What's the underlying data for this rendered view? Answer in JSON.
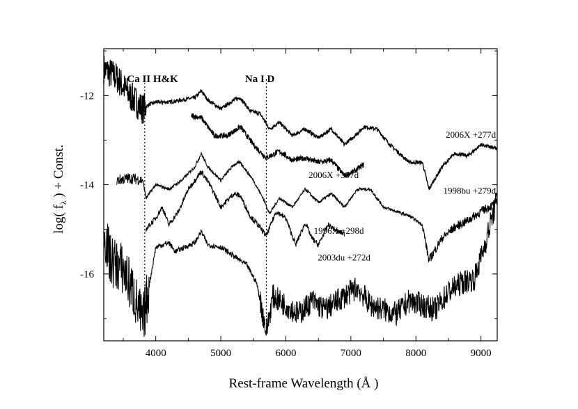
{
  "chart_data": {
    "type": "line",
    "xlabel": "Rest-frame Wavelength (Å )",
    "ylabel": "log( f_λ ) + Const.",
    "xlim": [
      3200,
      9250
    ],
    "ylim": [
      -17.5,
      -10.95
    ],
    "xticks": [
      4000,
      5000,
      6000,
      7000,
      8000,
      9000
    ],
    "yticks": [
      -12,
      -14,
      -16
    ],
    "grid": false,
    "legend": "none",
    "line_markers": [
      {
        "label": "Ca II H&K",
        "x": 3830,
        "label_x": 3950
      },
      {
        "label": "Na I D",
        "x": 5700,
        "label_x": 5600
      }
    ],
    "series": [
      {
        "name": "2006X +277d",
        "x": [
          3200,
          3400,
          3600,
          3800,
          3900,
          4000,
          4200,
          4400,
          4600,
          4700,
          4800,
          5000,
          5200,
          5300,
          5450,
          5600,
          5750,
          5900,
          6100,
          6300,
          6500,
          6700,
          6900,
          7100,
          7200,
          7400,
          7600,
          7900,
          8100,
          8200,
          8400,
          8600,
          8800,
          9000,
          9250
        ],
        "y": [
          -11.4,
          -11.6,
          -12.0,
          -12.3,
          -12.2,
          -12.15,
          -12.15,
          -12.1,
          -12.05,
          -11.9,
          -12.1,
          -12.3,
          -12.1,
          -12.05,
          -12.35,
          -12.4,
          -12.75,
          -12.6,
          -12.9,
          -12.75,
          -12.95,
          -12.75,
          -13.1,
          -12.85,
          -12.7,
          -12.75,
          -13.1,
          -13.5,
          -13.5,
          -14.1,
          -13.6,
          -13.3,
          -13.35,
          -13.1,
          -13.2
        ]
      },
      {
        "name": "2006X +307d",
        "x": [
          4550,
          4700,
          4900,
          5100,
          5300,
          5500,
          5700,
          5900,
          6100,
          6300,
          6500,
          6700,
          6900,
          7050,
          7200
        ],
        "y": [
          -12.45,
          -12.5,
          -12.9,
          -12.9,
          -12.7,
          -13.1,
          -13.4,
          -13.25,
          -13.45,
          -13.4,
          -13.5,
          -13.45,
          -13.8,
          -13.7,
          -13.55
        ]
      },
      {
        "name": "1998bu +279d",
        "x": [
          3400,
          3600,
          3800,
          3850,
          4000,
          4200,
          4400,
          4600,
          4700,
          4800,
          5000,
          5200,
          5300,
          5500,
          5650,
          5750,
          5900,
          6100,
          6300,
          6500,
          6700,
          6900,
          7100,
          7300,
          7500,
          7700,
          7900,
          8100,
          8200,
          8400,
          8600,
          8800,
          9000,
          9250
        ],
        "y": [
          -13.9,
          -13.85,
          -13.9,
          -14.3,
          -14.0,
          -14.1,
          -13.9,
          -13.6,
          -13.3,
          -13.6,
          -13.9,
          -13.55,
          -13.5,
          -13.9,
          -14.3,
          -14.65,
          -14.3,
          -14.5,
          -14.1,
          -14.4,
          -14.2,
          -14.5,
          -14.1,
          -14.1,
          -14.5,
          -14.6,
          -14.7,
          -14.9,
          -15.7,
          -15.2,
          -14.95,
          -14.8,
          -14.6,
          -14.4
        ]
      },
      {
        "name": "1996X +298d",
        "x": [
          3850,
          4000,
          4100,
          4200,
          4350,
          4500,
          4700,
          4850,
          5000,
          5200,
          5300,
          5450,
          5600,
          5700,
          5850,
          6000,
          6150,
          6300,
          6400,
          6500,
          6650,
          6800,
          6900
        ],
        "y": [
          -15.0,
          -14.75,
          -14.5,
          -14.9,
          -14.6,
          -14.1,
          -13.7,
          -14.05,
          -14.5,
          -14.2,
          -14.25,
          -14.7,
          -14.95,
          -15.15,
          -14.6,
          -14.75,
          -15.35,
          -14.85,
          -15.2,
          -15.35,
          -14.9,
          -15.05,
          -15.1
        ]
      },
      {
        "name": "2003du +272d",
        "x": [
          3200,
          3300,
          3500,
          3650,
          3800,
          4000,
          4200,
          4300,
          4450,
          4600,
          4700,
          4800,
          5000,
          5200,
          5400,
          5550,
          5700,
          5800,
          6000,
          6200,
          6400,
          6600,
          6800,
          7000,
          7100,
          7300,
          7500,
          7700,
          7900,
          8100,
          8300,
          8500,
          8700,
          8900,
          9050,
          9250
        ],
        "y": [
          -15.0,
          -15.7,
          -15.9,
          -16.4,
          -17.1,
          -15.4,
          -15.3,
          -15.5,
          -15.4,
          -15.3,
          -15.05,
          -15.35,
          -15.4,
          -15.6,
          -15.8,
          -16.2,
          -17.3,
          -16.5,
          -16.7,
          -16.9,
          -16.6,
          -16.8,
          -16.6,
          -16.4,
          -16.3,
          -16.7,
          -16.8,
          -16.9,
          -16.6,
          -16.7,
          -16.8,
          -16.4,
          -16.2,
          -16.1,
          -15.4,
          -14.3
        ]
      }
    ]
  }
}
